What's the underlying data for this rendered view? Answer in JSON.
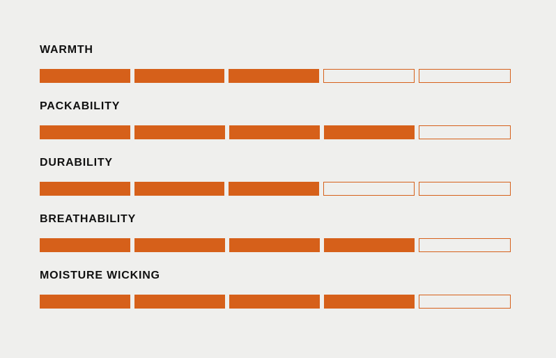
{
  "page": {
    "background_color": "#efefed"
  },
  "colors": {
    "accent": "#d6601a",
    "label_text": "#101010"
  },
  "ratings": {
    "max_segments": 5,
    "items": [
      {
        "label": "WARMTH",
        "value": 3
      },
      {
        "label": "PACKABILITY",
        "value": 4
      },
      {
        "label": "DURABILITY",
        "value": 3
      },
      {
        "label": "BREATHABILITY",
        "value": 4
      },
      {
        "label": "MOISTURE WICKING",
        "value": 4
      }
    ]
  },
  "chart_data": {
    "type": "bar",
    "subtype": "segmented-rating",
    "categories": [
      "WARMTH",
      "PACKABILITY",
      "DURABILITY",
      "BREATHABILITY",
      "MOISTURE WICKING"
    ],
    "values": [
      3,
      4,
      3,
      4,
      4
    ],
    "title": "",
    "xlabel": "",
    "ylabel": "",
    "ylim": [
      0,
      5
    ],
    "grid": false,
    "legend": false,
    "notes": "Each category rendered as 5 horizontal segments; filled = solid orange, unfilled = orange outline on page background"
  }
}
